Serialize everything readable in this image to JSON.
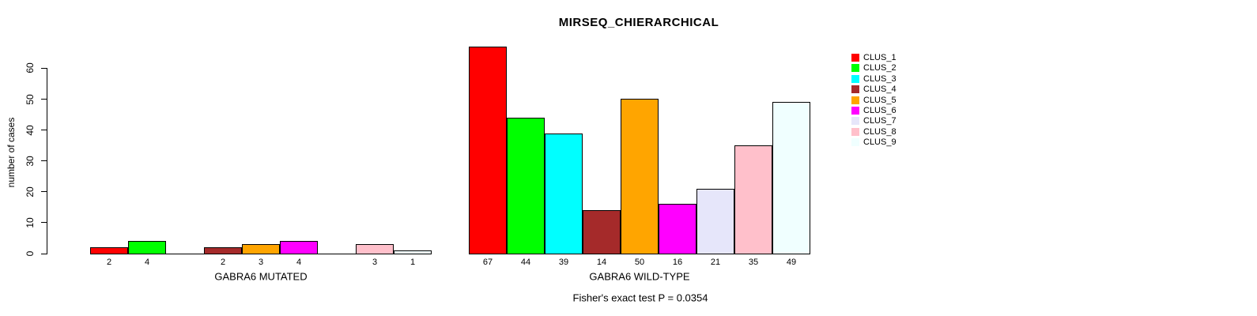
{
  "title": "MIRSEQ_CHIERARCHICAL",
  "chart_data": {
    "type": "bar",
    "title": "MIRSEQ_CHIERARCHICAL",
    "ylabel": "number of cases",
    "xlabel": "",
    "yticks": [
      0,
      10,
      20,
      30,
      40,
      50,
      60
    ],
    "ylim": [
      0,
      67
    ],
    "grid": false,
    "legend_position": "right",
    "clusters": [
      {
        "name": "CLUS_1",
        "color": "#FF0000"
      },
      {
        "name": "CLUS_2",
        "color": "#00FF00"
      },
      {
        "name": "CLUS_3",
        "color": "#00FFFF"
      },
      {
        "name": "CLUS_4",
        "color": "#A52A2A"
      },
      {
        "name": "CLUS_5",
        "color": "#FFA500"
      },
      {
        "name": "CLUS_6",
        "color": "#FF00FF"
      },
      {
        "name": "CLUS_7",
        "color": "#E6E6FA"
      },
      {
        "name": "CLUS_8",
        "color": "#FFC0CB"
      },
      {
        "name": "CLUS_9",
        "color": "#F0FFFF"
      }
    ],
    "groups": [
      {
        "label": "GABRA6 MUTATED",
        "values": [
          2,
          4,
          0,
          2,
          3,
          4,
          0,
          3,
          1
        ]
      },
      {
        "label": "GABRA6 WILD-TYPE",
        "values": [
          67,
          44,
          39,
          14,
          50,
          16,
          21,
          35,
          49
        ]
      }
    ],
    "annotation": "Fisher's exact test P = 0.0354"
  }
}
